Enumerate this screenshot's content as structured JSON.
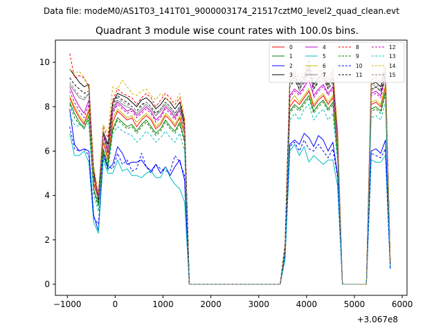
{
  "chart_data": {
    "type": "line",
    "suptitle": "Data file: modeM0/AS1T03_141T01_9000003174_21517cztM0_level2_quad_clean.evt",
    "title": "Quadrant 3 module wise count rates with 100.0s bins.",
    "xlabel": "",
    "ylabel": "",
    "offset_label": "+3.067e8",
    "xlim": [
      -1250,
      6100
    ],
    "ylim": [
      -0.5,
      11.0
    ],
    "xticks": [
      -1000,
      0,
      1000,
      2000,
      3000,
      4000,
      5000,
      6000
    ],
    "yticks": [
      0,
      2,
      4,
      6,
      8,
      10
    ],
    "x": [
      -950,
      -850,
      -750,
      -650,
      -550,
      -450,
      -350,
      -250,
      -150,
      -50,
      50,
      150,
      250,
      350,
      450,
      550,
      650,
      750,
      850,
      950,
      1050,
      1150,
      1250,
      1350,
      1450,
      1550,
      3450,
      3550,
      3650,
      3750,
      3850,
      3950,
      4050,
      4150,
      4250,
      4350,
      4450,
      4550,
      4650,
      4750,
      5250,
      5350,
      5450,
      5550,
      5650,
      5750
    ],
    "legend_position": "top-right",
    "series": [
      {
        "name": "0",
        "color": "#ff0000",
        "dash": "solid",
        "values": [
          8.4,
          7.9,
          7.5,
          7.2,
          7.8,
          4.5,
          3.9,
          6.4,
          5.6,
          7.3,
          7.8,
          7.6,
          7.4,
          7.5,
          7.1,
          7.4,
          7.6,
          7.4,
          7.0,
          7.2,
          7.6,
          7.4,
          7.1,
          7.5,
          6.8,
          0.0,
          0.0,
          1.5,
          8.0,
          8.3,
          8.1,
          8.4,
          8.7,
          8.0,
          8.3,
          8.5,
          8.1,
          8.4,
          6.0,
          0.0,
          0.0,
          8.1,
          8.2,
          8.0,
          8.9,
          0.9
        ]
      },
      {
        "name": "1",
        "color": "#008000",
        "dash": "solid",
        "values": [
          8.2,
          7.7,
          7.3,
          7.0,
          7.6,
          4.3,
          3.6,
          6.1,
          5.4,
          7.0,
          7.5,
          7.3,
          7.1,
          7.2,
          6.9,
          7.2,
          7.4,
          7.1,
          6.8,
          7.0,
          7.4,
          7.1,
          6.9,
          7.3,
          6.5,
          0.0,
          0.0,
          1.4,
          7.8,
          8.1,
          7.9,
          8.2,
          8.5,
          7.8,
          8.1,
          8.3,
          7.9,
          8.2,
          5.8,
          0.0,
          0.0,
          7.9,
          8.0,
          7.8,
          8.7,
          0.9
        ]
      },
      {
        "name": "2",
        "color": "#0000ff",
        "dash": "solid",
        "values": [
          7.9,
          6.3,
          6.0,
          6.1,
          6.0,
          3.1,
          2.4,
          5.9,
          5.2,
          5.4,
          6.2,
          5.9,
          5.4,
          5.5,
          5.5,
          5.6,
          5.3,
          5.1,
          5.4,
          5.0,
          5.3,
          4.9,
          5.3,
          5.6,
          4.7,
          0.0,
          0.0,
          1.3,
          6.3,
          6.5,
          6.3,
          6.8,
          6.6,
          6.2,
          6.7,
          6.5,
          6.0,
          6.4,
          4.9,
          0.0,
          0.0,
          6.0,
          6.1,
          5.9,
          6.5,
          0.7
        ]
      },
      {
        "name": "3",
        "color": "#000000",
        "dash": "solid",
        "values": [
          9.7,
          9.4,
          9.1,
          8.9,
          9.0,
          5.1,
          3.8,
          6.9,
          6.3,
          8.2,
          8.6,
          8.5,
          8.4,
          8.2,
          8.0,
          8.3,
          8.4,
          8.2,
          7.9,
          8.1,
          8.4,
          8.2,
          7.9,
          8.2,
          7.3,
          0.0,
          0.0,
          1.7,
          9.1,
          9.4,
          9.0,
          9.3,
          9.7,
          9.0,
          9.3,
          9.5,
          9.0,
          9.3,
          6.7,
          0.0,
          0.0,
          9.0,
          9.1,
          8.9,
          9.6,
          1.0
        ]
      },
      {
        "name": "4",
        "color": "#c000c0",
        "dash": "solid",
        "values": [
          8.9,
          8.4,
          8.0,
          7.7,
          8.3,
          4.8,
          4.1,
          6.8,
          5.9,
          7.8,
          8.2,
          8.0,
          7.8,
          7.9,
          7.6,
          7.8,
          8.0,
          7.8,
          7.4,
          7.6,
          8.0,
          7.8,
          7.5,
          7.9,
          7.1,
          0.0,
          0.0,
          1.6,
          8.5,
          8.8,
          8.6,
          8.9,
          9.2,
          8.5,
          8.8,
          9.0,
          8.6,
          8.9,
          6.3,
          0.0,
          0.0,
          8.6,
          8.7,
          8.5,
          9.4,
          0.9
        ]
      },
      {
        "name": "5",
        "color": "#00bfbf",
        "dash": "solid",
        "values": [
          6.8,
          5.8,
          5.8,
          6.0,
          5.5,
          2.8,
          2.3,
          5.6,
          5.0,
          5.0,
          5.6,
          5.1,
          5.2,
          4.9,
          4.9,
          4.8,
          5.0,
          5.1,
          4.8,
          4.8,
          5.3,
          4.8,
          4.5,
          4.3,
          3.7,
          0.0,
          0.0,
          1.1,
          6.0,
          6.3,
          5.8,
          6.2,
          5.5,
          5.8,
          5.6,
          5.4,
          5.6,
          5.6,
          4.4,
          0.0,
          0.0,
          5.6,
          5.5,
          5.5,
          5.8,
          0.7
        ]
      },
      {
        "name": "6",
        "color": "#bfbf00",
        "dash": "solid",
        "values": [
          8.5,
          8.0,
          7.6,
          7.3,
          7.9,
          4.6,
          4.0,
          6.5,
          5.7,
          7.5,
          7.9,
          7.7,
          7.5,
          7.6,
          7.3,
          7.5,
          7.7,
          7.5,
          7.1,
          7.3,
          7.7,
          7.5,
          7.2,
          7.6,
          6.9,
          0.0,
          0.0,
          1.5,
          8.2,
          8.5,
          8.2,
          8.5,
          8.8,
          8.1,
          8.4,
          8.6,
          8.2,
          8.5,
          6.1,
          0.0,
          0.0,
          8.2,
          8.3,
          8.1,
          9.0,
          0.9
        ]
      },
      {
        "name": "7",
        "color": "#808080",
        "dash": "solid",
        "values": [
          9.0,
          8.7,
          8.4,
          8.3,
          8.6,
          4.9,
          3.9,
          6.9,
          6.0,
          7.9,
          8.3,
          8.1,
          8.0,
          7.9,
          7.7,
          7.9,
          8.1,
          7.9,
          7.6,
          7.8,
          8.1,
          7.9,
          7.6,
          7.9,
          7.1,
          0.0,
          0.0,
          1.6,
          9.3,
          9.5,
          8.7,
          9.4,
          9.8,
          8.8,
          9.2,
          9.6,
          8.8,
          9.7,
          6.6,
          0.0,
          0.0,
          8.7,
          8.9,
          8.7,
          9.3,
          1.0
        ]
      },
      {
        "name": "8",
        "color": "#ff0000",
        "dash": "dashed",
        "values": [
          10.4,
          9.3,
          9.4,
          9.3,
          8.9,
          5.2,
          4.0,
          7.1,
          6.6,
          8.3,
          8.8,
          8.6,
          8.5,
          8.4,
          8.1,
          8.4,
          8.6,
          8.4,
          8.0,
          8.3,
          8.6,
          8.4,
          8.1,
          8.4,
          7.4,
          0.0,
          0.0,
          1.8,
          9.3,
          9.6,
          9.2,
          9.5,
          9.9,
          9.2,
          9.5,
          9.7,
          9.2,
          9.5,
          6.9,
          0.0,
          0.0,
          9.2,
          9.3,
          9.1,
          9.8,
          1.0
        ]
      },
      {
        "name": "9",
        "color": "#008000",
        "dash": "dashed",
        "values": [
          8.1,
          7.5,
          7.2,
          7.1,
          7.4,
          4.2,
          3.5,
          6.0,
          5.3,
          6.9,
          7.4,
          7.2,
          7.0,
          7.1,
          6.8,
          7.1,
          7.3,
          7.0,
          6.7,
          6.9,
          7.3,
          7.0,
          6.8,
          7.2,
          6.4,
          0.0,
          0.0,
          1.4,
          7.7,
          8.0,
          7.8,
          8.1,
          8.4,
          7.7,
          8.0,
          8.2,
          7.8,
          8.1,
          5.7,
          0.0,
          0.0,
          7.8,
          7.9,
          7.7,
          8.6,
          0.9
        ]
      },
      {
        "name": "10",
        "color": "#0000ff",
        "dash": "dashed",
        "values": [
          7.1,
          6.1,
          6.0,
          6.1,
          5.8,
          3.0,
          2.7,
          5.7,
          5.3,
          5.2,
          5.9,
          5.4,
          5.6,
          5.1,
          5.2,
          5.9,
          5.3,
          5.0,
          5.4,
          5.2,
          5.1,
          5.1,
          5.8,
          5.5,
          4.9,
          0.0,
          0.0,
          1.3,
          6.2,
          6.4,
          6.0,
          6.5,
          6.1,
          6.0,
          6.3,
          6.0,
          5.7,
          6.1,
          4.8,
          0.0,
          0.0,
          5.9,
          5.8,
          5.7,
          6.1,
          0.7
        ]
      },
      {
        "name": "11",
        "color": "#000000",
        "dash": "dashed",
        "values": [
          9.3,
          9.0,
          8.8,
          8.6,
          8.7,
          5.0,
          3.7,
          6.8,
          6.2,
          8.1,
          8.5,
          8.3,
          8.2,
          8.0,
          7.8,
          8.1,
          8.2,
          8.0,
          7.7,
          7.9,
          8.2,
          8.0,
          7.7,
          8.0,
          7.2,
          0.0,
          0.0,
          1.7,
          8.9,
          9.2,
          8.8,
          9.1,
          9.5,
          8.8,
          9.1,
          9.3,
          8.8,
          9.1,
          6.6,
          0.0,
          0.0,
          8.8,
          8.9,
          8.7,
          9.4,
          1.0
        ]
      },
      {
        "name": "12",
        "color": "#c000c0",
        "dash": "dashed",
        "values": [
          8.7,
          8.2,
          7.8,
          7.5,
          8.1,
          4.7,
          4.0,
          6.7,
          5.8,
          7.7,
          8.1,
          7.9,
          7.7,
          7.8,
          7.5,
          7.7,
          7.9,
          7.7,
          7.3,
          7.5,
          7.9,
          7.7,
          7.4,
          7.8,
          7.0,
          0.0,
          0.0,
          1.6,
          8.4,
          8.7,
          8.5,
          8.8,
          10.2,
          8.4,
          8.7,
          8.9,
          8.5,
          8.8,
          6.2,
          0.0,
          0.0,
          8.5,
          8.6,
          8.4,
          9.3,
          0.9
        ]
      },
      {
        "name": "13",
        "color": "#00bfbf",
        "dash": "dashed",
        "values": [
          7.6,
          7.2,
          7.1,
          7.3,
          7.2,
          4.0,
          3.3,
          5.8,
          5.1,
          6.8,
          7.1,
          6.9,
          6.8,
          6.7,
          6.4,
          6.6,
          6.9,
          6.7,
          6.4,
          6.6,
          6.9,
          6.6,
          6.4,
          6.8,
          6.0,
          0.0,
          0.0,
          1.3,
          7.4,
          7.7,
          7.4,
          7.9,
          8.1,
          7.4,
          7.7,
          7.9,
          7.4,
          7.7,
          5.5,
          0.0,
          0.0,
          7.5,
          7.6,
          7.4,
          8.2,
          0.8
        ]
      },
      {
        "name": "14",
        "color": "#d4b000",
        "dash": "dashed",
        "values": [
          9.7,
          9.5,
          9.6,
          9.3,
          8.8,
          5.3,
          4.1,
          7.2,
          6.8,
          8.9,
          8.8,
          9.2,
          8.9,
          8.6,
          8.5,
          8.7,
          8.8,
          8.5,
          8.3,
          8.6,
          8.4,
          8.2,
          8.2,
          8.6,
          7.5,
          0.0,
          0.0,
          1.8,
          9.4,
          9.7,
          9.3,
          9.7,
          10.0,
          9.3,
          9.6,
          9.8,
          9.3,
          9.7,
          7.0,
          0.0,
          0.0,
          9.3,
          9.4,
          9.2,
          9.9,
          1.0
        ]
      },
      {
        "name": "15",
        "color": "#808080",
        "dash": "dashed",
        "values": [
          9.1,
          8.8,
          8.5,
          8.4,
          8.6,
          4.9,
          3.9,
          6.9,
          6.1,
          8.0,
          8.4,
          8.2,
          8.1,
          8.0,
          7.8,
          8.0,
          8.2,
          8.0,
          7.6,
          7.9,
          8.2,
          8.0,
          7.7,
          8.0,
          7.2,
          0.0,
          0.0,
          1.6,
          9.0,
          9.3,
          8.9,
          9.2,
          9.6,
          8.9,
          9.2,
          9.4,
          8.9,
          9.2,
          6.6,
          0.0,
          0.0,
          8.9,
          9.0,
          8.8,
          9.5,
          1.0
        ]
      }
    ]
  }
}
